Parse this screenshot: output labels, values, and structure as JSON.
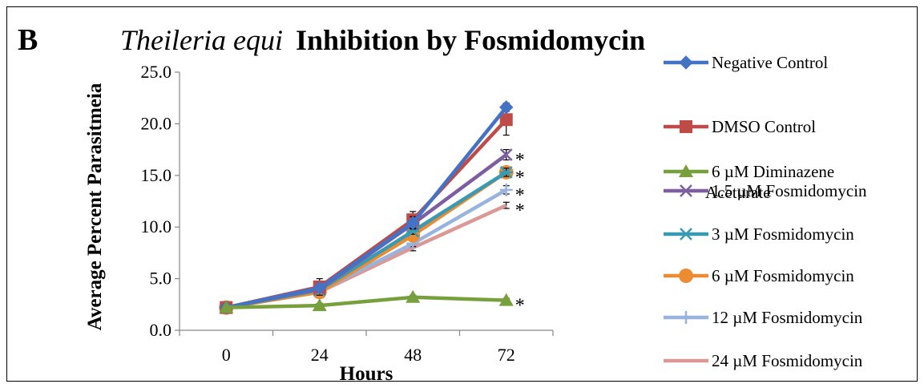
{
  "panel_letter": "B",
  "chart_data": {
    "type": "line",
    "title_italic": "Theileria equi",
    "title_rest": "Inhibition by Fosmidomycin",
    "xlabel": "Hours",
    "ylabel": "Average Percent Parasitmeia",
    "categories": [
      "0",
      "24",
      "48",
      "72"
    ],
    "x": [
      0,
      24,
      48,
      72
    ],
    "ylim": [
      0,
      25
    ],
    "yticks": [
      "0.0",
      "5.0",
      "10.0",
      "15.0",
      "20.0",
      "25.0"
    ],
    "grid": false,
    "legend_position": "right",
    "series": [
      {
        "name": "Negative Control",
        "values": [
          2.2,
          4.1,
          10.4,
          21.6
        ],
        "color": "#4472C4",
        "marker": "diamond",
        "errors": [
          0,
          0.3,
          0.6,
          0.4
        ]
      },
      {
        "name": "DMSO Control",
        "values": [
          2.2,
          4.2,
          10.7,
          20.4
        ],
        "color": "#BE4B48",
        "marker": "square",
        "errors": [
          0,
          0.8,
          0.8,
          1.5
        ]
      },
      {
        "name": "6 µM Diminazene Aceturate",
        "values": [
          2.2,
          2.4,
          3.2,
          2.9
        ],
        "color": "#77A03D",
        "marker": "triangle",
        "errors": [
          0,
          0.2,
          0.2,
          0.2
        ]
      },
      {
        "name": "1.5 µM Fosmidomycin",
        "values": [
          2.2,
          4.0,
          10.3,
          17.0
        ],
        "color": "#7D5EA0",
        "marker": "x",
        "errors": [
          0,
          0.2,
          0.4,
          0.5
        ]
      },
      {
        "name": "3 µM Fosmidomycin",
        "values": [
          2.2,
          3.9,
          9.6,
          15.3
        ],
        "color": "#3A9AB2",
        "marker": "asterisk",
        "errors": [
          0,
          0.2,
          0.3,
          0.4
        ]
      },
      {
        "name": "6 µM Fosmidomycin",
        "values": [
          2.2,
          3.7,
          9.2,
          15.3
        ],
        "color": "#EB8C33",
        "marker": "circle",
        "errors": [
          0,
          0.2,
          0.3,
          0.4
        ]
      },
      {
        "name": "12 µM Fosmidomycin",
        "values": [
          2.2,
          3.8,
          8.4,
          13.6
        ],
        "color": "#98B3DD",
        "marker": "plus",
        "errors": [
          0,
          0.2,
          0.3,
          0.4
        ]
      },
      {
        "name": "24 µM Fosmidomycin",
        "values": [
          2.2,
          3.7,
          8.0,
          12.1
        ],
        "color": "#DB9894",
        "marker": "none",
        "errors": [
          0,
          0.2,
          0.3,
          0.3
        ]
      }
    ],
    "significance_marks": [
      {
        "series": "1.5 µM Fosmidomycin",
        "label": "*"
      },
      {
        "series": "6 µM Fosmidomycin",
        "label": "*"
      },
      {
        "series": "12 µM Fosmidomycin",
        "label": "*"
      },
      {
        "series": "24 µM Fosmidomycin",
        "label": "*"
      },
      {
        "series": "6 µM Diminazene Aceturate",
        "label": "*"
      }
    ]
  }
}
